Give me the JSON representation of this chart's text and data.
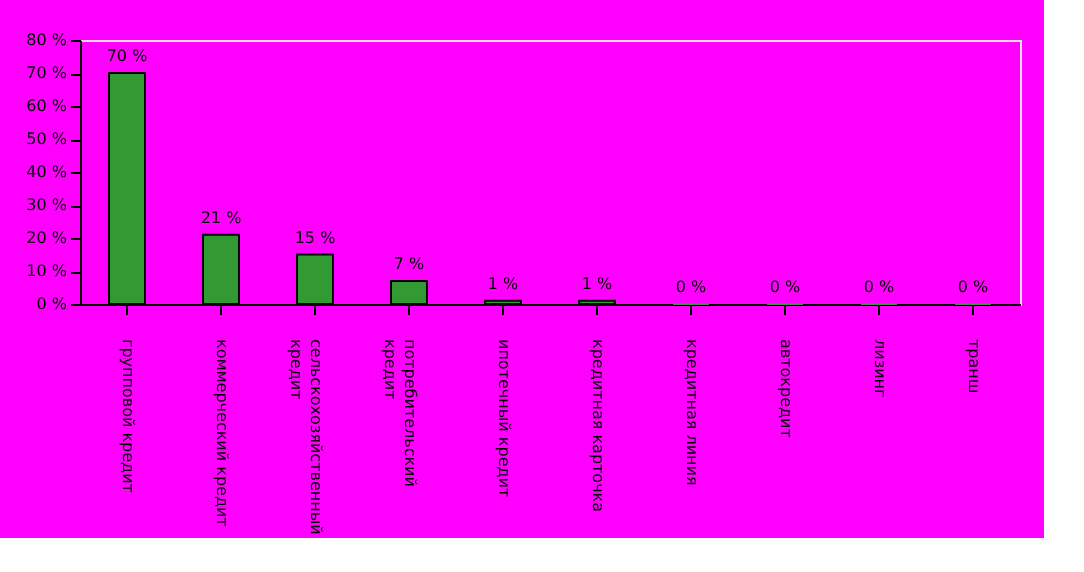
{
  "chart_data": {
    "type": "bar",
    "categories": [
      "групповой кредит",
      "коммерческий кредит",
      "сельскохозяйственный кредит",
      "потребительский кредит",
      "ипотечный кредит",
      "кредитная карточка",
      "кредитная линия",
      "автокредит",
      "лизинг",
      "транш"
    ],
    "values": [
      70,
      21,
      15,
      7,
      1,
      1,
      0,
      0,
      0,
      0
    ],
    "value_labels": [
      "70 %",
      "21 %",
      "15 %",
      "7 %",
      "1 %",
      "1 %",
      "0 %",
      "0 %",
      "0 %",
      "0 %"
    ],
    "color": "#339933",
    "ylim": [
      0,
      80
    ],
    "yticks": [
      {
        "value": 0,
        "label": "0 %"
      },
      {
        "value": 10,
        "label": "10 %"
      },
      {
        "value": 20,
        "label": "20 %"
      },
      {
        "value": 30,
        "label": "30 %"
      },
      {
        "value": 40,
        "label": "40 %"
      },
      {
        "value": 50,
        "label": "50 %"
      },
      {
        "value": 60,
        "label": "60 %"
      },
      {
        "value": 70,
        "label": "70 %"
      },
      {
        "value": 80,
        "label": "80 %"
      }
    ],
    "grid": false
  }
}
